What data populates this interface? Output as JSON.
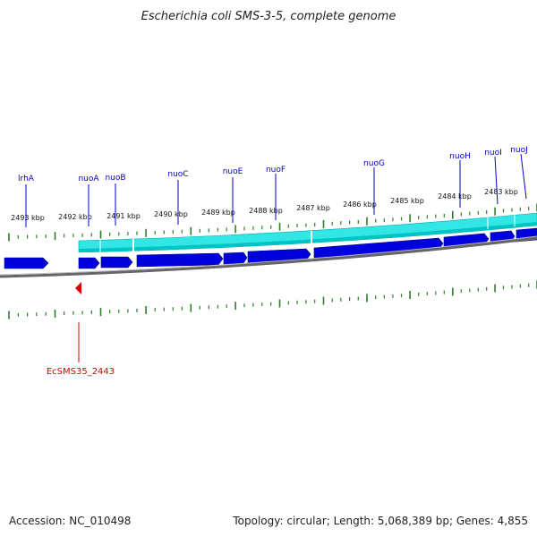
{
  "title": "Escherichia coli SMS-3-5, complete genome",
  "footer": {
    "accession": "Accession: NC_010498",
    "summary": "Topology: circular; Length: 5,068,389 bp; Genes: 4,855"
  },
  "colors": {
    "gene": "#0000dd",
    "cds_band": "#00dddd",
    "backbone": "#777777",
    "tick": "#2d7d2d",
    "label_line": "#0000cc",
    "feature": "#dd0000"
  },
  "kbp_labels": [
    "2493 kbp",
    "2492 kbp",
    "2491 kbp",
    "2490 kbp",
    "2489 kbp",
    "2488 kbp",
    "2487 kbp",
    "2486 kbp",
    "2485 kbp",
    "2484 kbp",
    "2483 kbp"
  ],
  "genes": [
    "lrhA",
    "nuoA",
    "nuoB",
    "nuoC",
    "nuoE",
    "nuoF",
    "nuoG",
    "nuoH",
    "nuoI",
    "nuoJ"
  ],
  "feature": {
    "label": "EcSMS35_2443",
    "icon": "red-triangle-marker"
  }
}
